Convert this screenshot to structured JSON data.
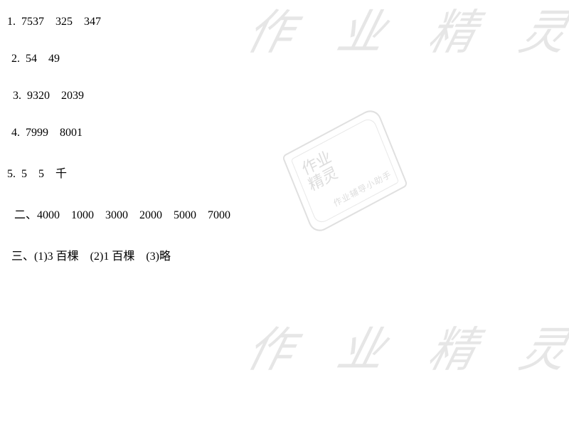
{
  "lines": {
    "l1": "1.  7537    325    347",
    "l2": "2.  54    49",
    "l3": "3.  9320    2039",
    "l4": "4.  7999    8001",
    "l5": "5.  5    5    千",
    "l6": "二、4000    1000    3000    2000    5000    7000",
    "l7": "三、(1)3 百棵    (2)1 百棵    (3)略"
  },
  "watermark": {
    "large_text": "作 业 精 灵",
    "stamp_line1": "作业",
    "stamp_line2": "精灵",
    "stamp_small": "作业辅导小助手"
  },
  "style": {
    "text_color": "#000000",
    "watermark_color": "#e6e6e6",
    "bg": "#ffffff",
    "font_size_body": 16,
    "font_size_wm_large": 64,
    "font_size_stamp_main": 22,
    "font_size_stamp_small": 12,
    "line_gap": 34
  }
}
